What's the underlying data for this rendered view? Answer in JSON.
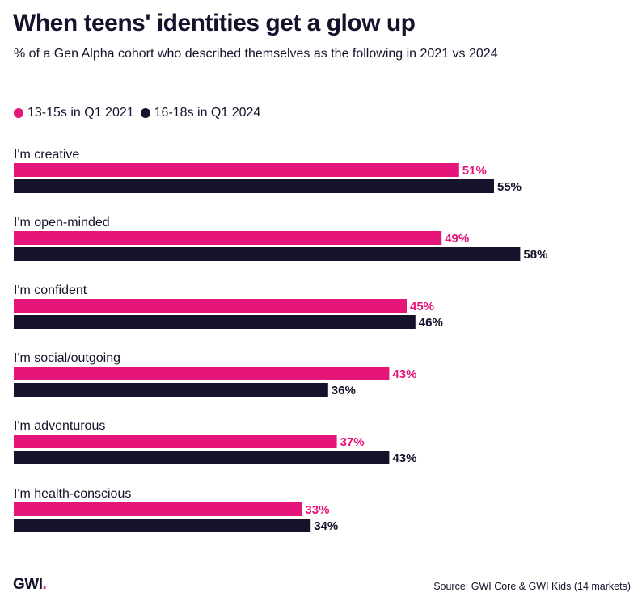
{
  "title": "When teens' identities get a glow up",
  "subtitle": "% of a Gen Alpha cohort who described themselves as the following in 2021 vs 2024",
  "colors": {
    "series1": "#e6157a",
    "series2": "#15122b"
  },
  "logo": {
    "text": "GWI",
    "dot": "."
  },
  "source": "Source: GWI Core & GWI Kids (14 markets)",
  "chart_data": {
    "type": "bar",
    "orientation": "horizontal",
    "title": "When teens' identities get a glow up",
    "subtitle": "% of a Gen Alpha cohort who described themselves as the following in 2021 vs 2024",
    "categories": [
      "I'm creative",
      "I'm open-minded",
      "I'm confident",
      "I'm social/outgoing",
      "I'm adventurous",
      "I'm health-conscious"
    ],
    "series": [
      {
        "name": "13-15s in Q1 2021",
        "color": "#e6157a",
        "values": [
          51,
          49,
          45,
          43,
          37,
          33
        ]
      },
      {
        "name": "16-18s in Q1 2024",
        "color": "#15122b",
        "values": [
          55,
          58,
          46,
          36,
          43,
          34
        ]
      }
    ],
    "value_suffix": "%",
    "xlim": [
      0,
      60
    ],
    "legend": "top-left",
    "grid": false
  }
}
